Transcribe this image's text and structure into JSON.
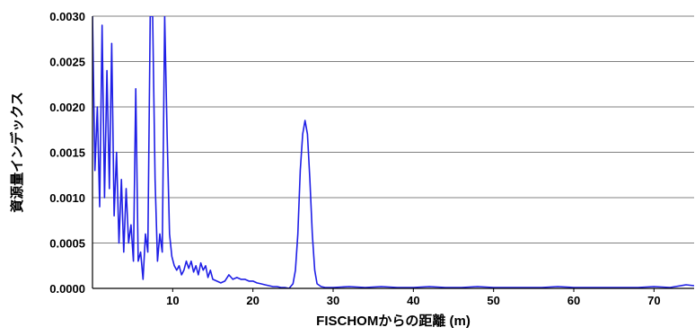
{
  "chart_data": {
    "type": "line",
    "title": "",
    "xlabel": "FISCHOMからの距離 (m)",
    "ylabel": "資源量インデックス",
    "xlim": [
      0,
      75
    ],
    "ylim": [
      0,
      0.003
    ],
    "grid": {
      "horizontal": true,
      "vertical": false
    },
    "y_ticks": [
      "0.0000",
      "0.0005",
      "0.0010",
      "0.0015",
      "0.0020",
      "0.0025",
      "0.0030"
    ],
    "y_tick_values": [
      0,
      0.0005,
      0.001,
      0.0015,
      0.002,
      0.0025,
      0.003
    ],
    "x_ticks": [
      "10",
      "20",
      "30",
      "40",
      "50",
      "60",
      "70"
    ],
    "x_tick_values": [
      10,
      20,
      30,
      40,
      50,
      60,
      70
    ],
    "colors": {
      "series": "#1f1fe6",
      "grid": "#808080",
      "axis": "#000000"
    },
    "series": [
      {
        "name": "",
        "x": [
          0.0,
          0.3,
          0.6,
          0.9,
          1.2,
          1.5,
          1.8,
          2.1,
          2.4,
          2.7,
          3.0,
          3.3,
          3.6,
          3.9,
          4.2,
          4.5,
          4.8,
          5.1,
          5.4,
          5.7,
          6.0,
          6.3,
          6.6,
          6.9,
          7.2,
          7.5,
          7.8,
          8.1,
          8.4,
          8.7,
          9.0,
          9.3,
          9.6,
          9.9,
          10.2,
          10.5,
          10.8,
          11.1,
          11.4,
          11.7,
          12.0,
          12.3,
          12.6,
          12.9,
          13.2,
          13.5,
          13.8,
          14.1,
          14.4,
          14.7,
          15.0,
          15.5,
          16.0,
          16.5,
          17.0,
          17.5,
          18.0,
          18.5,
          19.0,
          19.5,
          20.0,
          20.5,
          21.0,
          21.5,
          22.0,
          22.5,
          23.0,
          23.5,
          24.0,
          24.5,
          25.0,
          25.3,
          25.6,
          25.9,
          26.2,
          26.5,
          26.8,
          27.1,
          27.4,
          27.7,
          28.0,
          28.5,
          29.0,
          30,
          32,
          34,
          36,
          38,
          40,
          42,
          44,
          46,
          48,
          50,
          52,
          54,
          56,
          58,
          60,
          62,
          64,
          66,
          68,
          70,
          72,
          74,
          75
        ],
        "y": [
          0.003,
          0.0013,
          0.002,
          0.0009,
          0.0029,
          0.001,
          0.0024,
          0.0011,
          0.0027,
          0.0008,
          0.0015,
          0.0005,
          0.0012,
          0.0004,
          0.0011,
          0.0005,
          0.0007,
          0.0003,
          0.0022,
          0.0003,
          0.0004,
          0.0001,
          0.0006,
          0.0004,
          0.003,
          0.003,
          0.0012,
          0.0003,
          0.0006,
          0.0004,
          0.003,
          0.0017,
          0.0006,
          0.00035,
          0.00025,
          0.0002,
          0.00025,
          0.00015,
          0.0002,
          0.0003,
          0.00022,
          0.0003,
          0.00018,
          0.00025,
          0.00015,
          0.00028,
          0.0002,
          0.00025,
          0.00012,
          0.0002,
          0.0001,
          8e-05,
          6e-05,
          8e-05,
          0.00015,
          0.0001,
          0.00012,
          0.0001,
          0.0001,
          8e-05,
          8e-05,
          6e-05,
          5e-05,
          4e-05,
          3e-05,
          2e-05,
          2e-05,
          1e-05,
          1e-05,
          0.0,
          5e-05,
          0.0002,
          0.0006,
          0.0013,
          0.0017,
          0.00185,
          0.0017,
          0.0012,
          0.0006,
          0.0002,
          5e-05,
          2e-05,
          1e-05,
          1e-05,
          2e-05,
          1e-05,
          2e-05,
          1e-05,
          1e-05,
          2e-05,
          1e-05,
          1e-05,
          2e-05,
          1e-05,
          1e-05,
          1e-05,
          1e-05,
          2e-05,
          1e-05,
          1e-05,
          1e-05,
          1e-05,
          1e-05,
          2e-05,
          1e-05,
          4e-05,
          3e-05
        ]
      }
    ]
  }
}
